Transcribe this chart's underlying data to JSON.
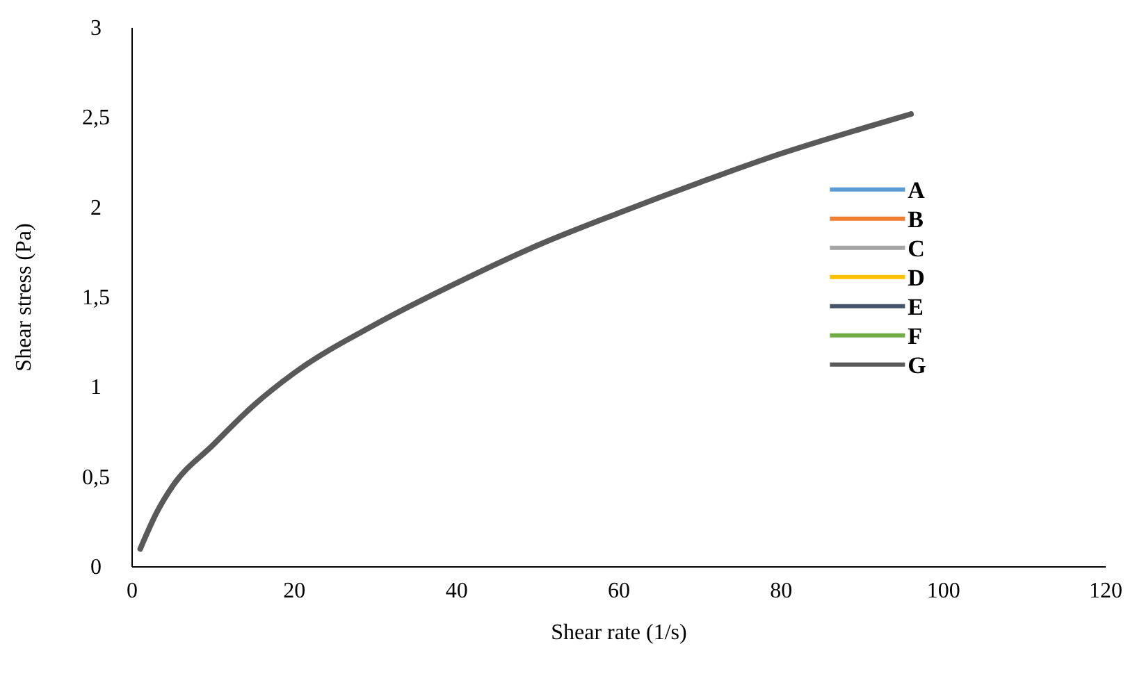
{
  "chart_data": {
    "type": "line",
    "xlabel": "Shear rate (1/s)",
    "ylabel": "Shear stress (Pa)",
    "x": [
      1,
      3,
      5,
      10,
      15,
      20,
      30,
      40,
      50,
      60,
      70,
      80,
      90,
      96
    ],
    "series": [
      {
        "name": "A",
        "color": "#5b9bd5",
        "values": [
          null,
          null,
          null,
          null,
          null,
          null,
          null,
          null,
          null,
          null,
          null,
          null,
          null,
          null
        ]
      },
      {
        "name": "B",
        "color": "#ed7d31",
        "values": [
          null,
          null,
          null,
          null,
          null,
          null,
          null,
          null,
          null,
          null,
          null,
          null,
          null,
          null
        ]
      },
      {
        "name": "C",
        "color": "#a5a5a5",
        "values": [
          null,
          null,
          null,
          null,
          null,
          null,
          null,
          null,
          null,
          null,
          null,
          null,
          null,
          null
        ]
      },
      {
        "name": "D",
        "color": "#ffc000",
        "values": [
          null,
          null,
          null,
          null,
          null,
          null,
          null,
          null,
          null,
          null,
          null,
          null,
          null,
          null
        ]
      },
      {
        "name": "E",
        "color": "#44546a",
        "values": [
          null,
          null,
          null,
          null,
          null,
          null,
          null,
          null,
          null,
          null,
          null,
          null,
          null,
          null
        ]
      },
      {
        "name": "F",
        "color": "#70ad47",
        "values": [
          null,
          null,
          null,
          null,
          null,
          null,
          null,
          null,
          null,
          null,
          null,
          null,
          null,
          null
        ]
      },
      {
        "name": "G",
        "color": "#595959",
        "values": [
          0.1,
          0.3,
          0.45,
          0.68,
          0.9,
          1.08,
          1.35,
          1.58,
          1.79,
          1.97,
          2.14,
          2.3,
          2.44,
          2.52
        ]
      }
    ],
    "xlim": [
      0,
      120
    ],
    "xticks": [
      0,
      20,
      40,
      60,
      80,
      100,
      120
    ],
    "ylim": [
      0,
      3
    ],
    "yticks": [
      0,
      {
        "value": 0.5,
        "label": "0,5"
      },
      1,
      {
        "value": 1.5,
        "label": "1,5"
      },
      2,
      {
        "value": 2.5,
        "label": "2,5"
      },
      3
    ],
    "grid": false,
    "legend": "right",
    "marker": "none",
    "line_style": "solid"
  }
}
